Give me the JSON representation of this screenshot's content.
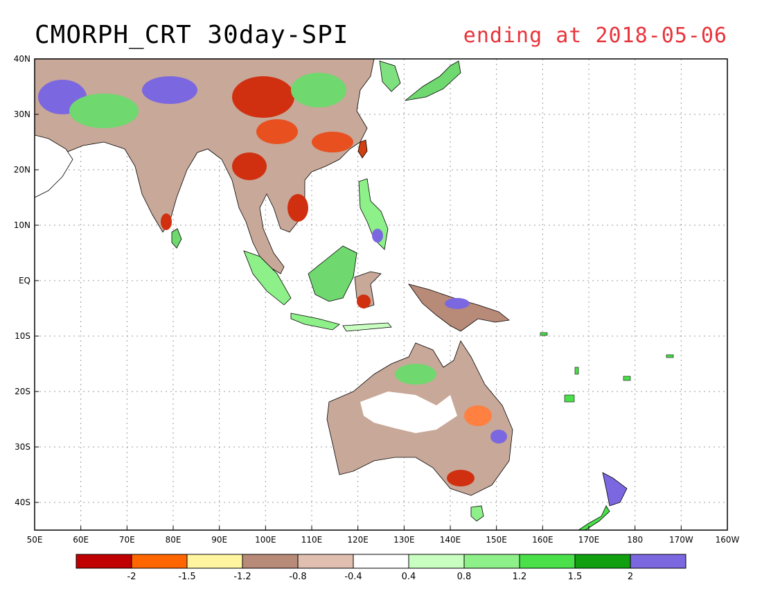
{
  "title": {
    "main": "CMORPH_CRT 30day-SPI",
    "ending": "ending at 2018-05-06",
    "ending_color": "#e8333a"
  },
  "map": {
    "lat_ticks": [
      "40N",
      "30N",
      "20N",
      "10N",
      "EQ",
      "10S",
      "20S",
      "30S",
      "40S"
    ],
    "lon_ticks": [
      "50E",
      "60E",
      "70E",
      "80E",
      "90E",
      "100E",
      "110E",
      "120E",
      "130E",
      "140E",
      "150E",
      "160E",
      "170E",
      "180",
      "170W",
      "160W"
    ]
  },
  "colorbar": {
    "colors": [
      "#c00000",
      "#ff6600",
      "#fff5a0",
      "#b88a78",
      "#e0bfb0",
      "#ffffff",
      "#c8ffc0",
      "#8ef088",
      "#4ae04a",
      "#10a010",
      "#7b68e0"
    ],
    "labels": [
      "-2",
      "-1.5",
      "-1.2",
      "-0.8",
      "-0.4",
      "0.4",
      "0.8",
      "1.2",
      "1.5",
      "2"
    ]
  }
}
